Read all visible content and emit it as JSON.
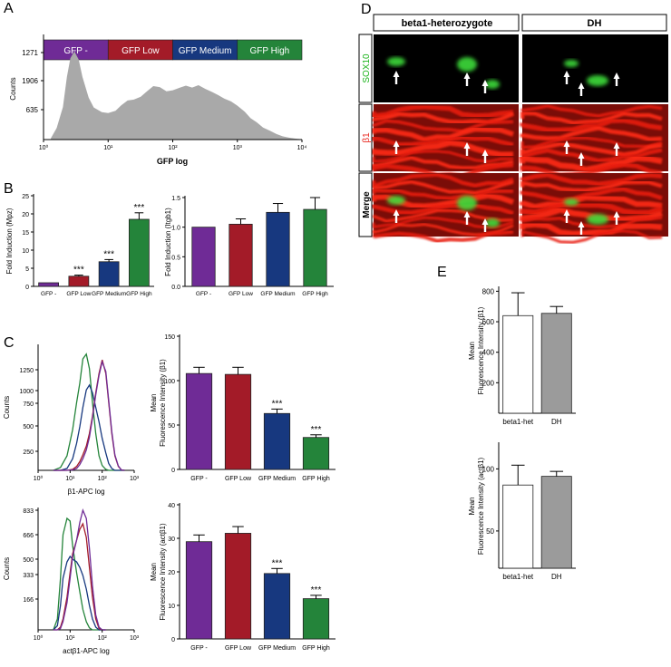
{
  "panel_labels": {
    "A": "A",
    "B": "B",
    "C": "C",
    "D": "D",
    "E": "E"
  },
  "colors": {
    "gfp_neg": "#6f2b96",
    "gfp_low": "#a31b28",
    "gfp_med": "#17387f",
    "gfp_high": "#24843a",
    "histogram": "#a9a9a9",
    "bar_white": "#ffffff",
    "bar_grey": "#9b9b9b"
  },
  "panel_a": {
    "gates": [
      {
        "label": "GFP -",
        "color": "#6f2b96"
      },
      {
        "label": "GFP Low",
        "color": "#a31b28"
      },
      {
        "label": "GFP Medium",
        "color": "#17387f"
      },
      {
        "label": "GFP High",
        "color": "#24843a"
      }
    ]
  },
  "panel_d": {
    "columns": [
      "beta1-heterozygote",
      "DH"
    ],
    "rows": [
      {
        "label": "SOX10",
        "color": "#1ab31a"
      },
      {
        "label": "β1",
        "color": "#e8231a"
      },
      {
        "label": "Merge",
        "color": "#000000"
      }
    ]
  },
  "chart_data": [
    {
      "id": "A",
      "type": "area",
      "xlabel": "GFP log",
      "ylabel": "Counts",
      "x_scale": "log",
      "xlim": [
        1,
        10000
      ],
      "x_ticks": [
        "10⁰",
        "10¹",
        "10²",
        "10³",
        "10⁴"
      ],
      "y_ticks": [
        "1271",
        "1906",
        "635"
      ],
      "x": [
        1.3,
        1.6,
        2,
        2.3,
        2.6,
        3,
        3.5,
        4,
        5,
        6,
        8,
        10,
        13,
        16,
        20,
        25,
        32,
        40,
        50,
        63,
        80,
        100,
        130,
        160,
        200,
        250,
        320,
        400,
        500,
        630,
        800,
        1000,
        1300,
        1600,
        2000,
        2500,
        3200,
        4000,
        5000,
        6300,
        8000,
        10000
      ],
      "values": [
        30,
        250,
        700,
        1350,
        1750,
        1900,
        1720,
        1350,
        900,
        690,
        590,
        570,
        620,
        740,
        840,
        860,
        920,
        1040,
        1150,
        1130,
        1040,
        1060,
        1120,
        1160,
        1120,
        1170,
        1090,
        1030,
        960,
        880,
        820,
        730,
        600,
        460,
        370,
        260,
        190,
        120,
        70,
        40,
        20,
        5
      ]
    },
    {
      "id": "B-left",
      "type": "bar",
      "categories": [
        "GFP -",
        "GFP Low",
        "GFP Medium",
        "GFP High"
      ],
      "values": [
        1.0,
        2.8,
        6.8,
        18.5
      ],
      "errors": [
        0,
        0.3,
        0.6,
        1.8
      ],
      "annotations": [
        "",
        "***",
        "***",
        "***"
      ],
      "ylabel": "Fold Induction (Mpz)",
      "ylim": [
        0,
        25
      ],
      "yticks": [
        "0",
        "5",
        "10",
        "15",
        "20",
        "25"
      ]
    },
    {
      "id": "B-right",
      "type": "bar",
      "categories": [
        "GFP -",
        "GFP Low",
        "GFP Medium",
        "GFP High"
      ],
      "values": [
        1.0,
        1.05,
        1.25,
        1.3
      ],
      "errors": [
        0,
        0.09,
        0.15,
        0.2
      ],
      "ylabel": "Fold Induction (Itgb1)",
      "ylim": [
        0,
        1.5
      ],
      "yticks": [
        "0.0",
        "0.5",
        "1.0",
        "1.5"
      ]
    },
    {
      "id": "C-hist-top",
      "type": "line",
      "xlabel": "β1-APC log",
      "ylabel": "Counts",
      "x_scale": "log",
      "xlim": [
        1,
        1000
      ],
      "x_ticks": [
        "10⁰",
        "10¹",
        "10²",
        "10³"
      ],
      "y_ticks": [
        "250",
        "500",
        "750",
        "1000",
        "1250"
      ],
      "ylim": [
        0,
        1300
      ],
      "x": [
        3,
        5,
        8,
        12,
        16,
        20,
        25,
        32,
        40,
        50,
        63,
        80,
        100,
        130,
        160,
        200,
        250,
        320,
        400,
        500
      ],
      "series": [
        {
          "color": "#24843a",
          "values": [
            0,
            30,
            150,
            420,
            700,
            900,
            1150,
            1200,
            1050,
            700,
            380,
            150,
            50,
            10,
            0,
            0,
            0,
            0,
            0,
            0
          ]
        },
        {
          "color": "#17387f",
          "values": [
            0,
            0,
            20,
            120,
            280,
            450,
            650,
            830,
            880,
            800,
            650,
            500,
            330,
            180,
            70,
            20,
            0,
            0,
            0,
            0
          ]
        },
        {
          "color": "#a31b28",
          "values": [
            0,
            0,
            0,
            10,
            40,
            90,
            160,
            250,
            380,
            560,
            800,
            1000,
            1140,
            1000,
            700,
            380,
            150,
            40,
            5,
            0
          ]
        },
        {
          "color": "#6f2b96",
          "values": [
            0,
            0,
            0,
            5,
            20,
            60,
            120,
            210,
            340,
            540,
            780,
            980,
            1120,
            1020,
            720,
            400,
            160,
            45,
            5,
            0
          ]
        }
      ]
    },
    {
      "id": "C-bar-top",
      "type": "bar",
      "categories": [
        "GFP -",
        "GFP Low",
        "GFP Medium",
        "GFP High"
      ],
      "values": [
        108,
        107,
        63,
        36
      ],
      "errors": [
        7,
        8,
        5,
        3
      ],
      "annotations": [
        "",
        "",
        "***",
        "***"
      ],
      "ylabel": "Mean Fluorescence Intensity (β1)",
      "ylim": [
        0,
        150
      ],
      "yticks": [
        "0",
        "50",
        "100",
        "150"
      ]
    },
    {
      "id": "C-hist-bottom",
      "type": "line",
      "xlabel": "actβ1-APC log",
      "ylabel": "Counts",
      "x_scale": "log",
      "xlim": [
        1,
        1000
      ],
      "x_ticks": [
        "10⁰",
        "10¹",
        "10²",
        "10³"
      ],
      "y_ticks": [
        "833",
        "666",
        "500",
        "333",
        "166"
      ],
      "ylim": [
        0,
        900
      ],
      "x": [
        3,
        4,
        5,
        6,
        8,
        10,
        12,
        16,
        20,
        25,
        32,
        40,
        50,
        63,
        80,
        100,
        130
      ],
      "series": [
        {
          "color": "#24843a",
          "values": [
            0,
            80,
            380,
            700,
            820,
            800,
            620,
            420,
            280,
            150,
            60,
            15,
            0,
            0,
            0,
            0,
            0
          ]
        },
        {
          "color": "#17387f",
          "values": [
            0,
            30,
            180,
            380,
            500,
            540,
            520,
            500,
            460,
            400,
            300,
            180,
            80,
            20,
            0,
            0,
            0
          ]
        },
        {
          "color": "#a31b28",
          "values": [
            0,
            0,
            20,
            80,
            240,
            420,
            560,
            660,
            740,
            780,
            680,
            460,
            240,
            80,
            10,
            0,
            0
          ]
        },
        {
          "color": "#6f2b96",
          "values": [
            0,
            0,
            10,
            60,
            200,
            380,
            540,
            660,
            790,
            880,
            820,
            600,
            320,
            110,
            20,
            0,
            0
          ]
        }
      ]
    },
    {
      "id": "C-bar-bottom",
      "type": "bar",
      "categories": [
        "GFP -",
        "GFP Low",
        "GFP Medium",
        "GFP High"
      ],
      "values": [
        29,
        31.5,
        19.5,
        12
      ],
      "errors": [
        2,
        2,
        1.5,
        1
      ],
      "annotations": [
        "",
        "",
        "***",
        "***"
      ],
      "ylabel": "Mean Fluorescence Intensity (actβ1)",
      "ylim": [
        0,
        40
      ],
      "yticks": [
        "0",
        "10",
        "20",
        "30",
        "40"
      ]
    },
    {
      "id": "E-top",
      "type": "bar",
      "categories": [
        "beta1-het",
        "DH"
      ],
      "values": [
        640,
        655
      ],
      "errors": [
        150,
        45
      ],
      "ylabel": "Mean Fluorescence Intensity (β1)",
      "ylim": [
        0,
        820
      ],
      "yticks": [
        "200",
        "400",
        "600",
        "800"
      ]
    },
    {
      "id": "E-bottom",
      "type": "bar",
      "categories": [
        "beta1-het",
        "DH"
      ],
      "values": [
        87,
        94
      ],
      "errors": [
        16,
        4
      ],
      "ylabel": "Mean Fluorescence Intensity (actβ1)",
      "ylim": [
        20,
        120
      ],
      "yticks": [
        "50",
        "100"
      ]
    }
  ]
}
